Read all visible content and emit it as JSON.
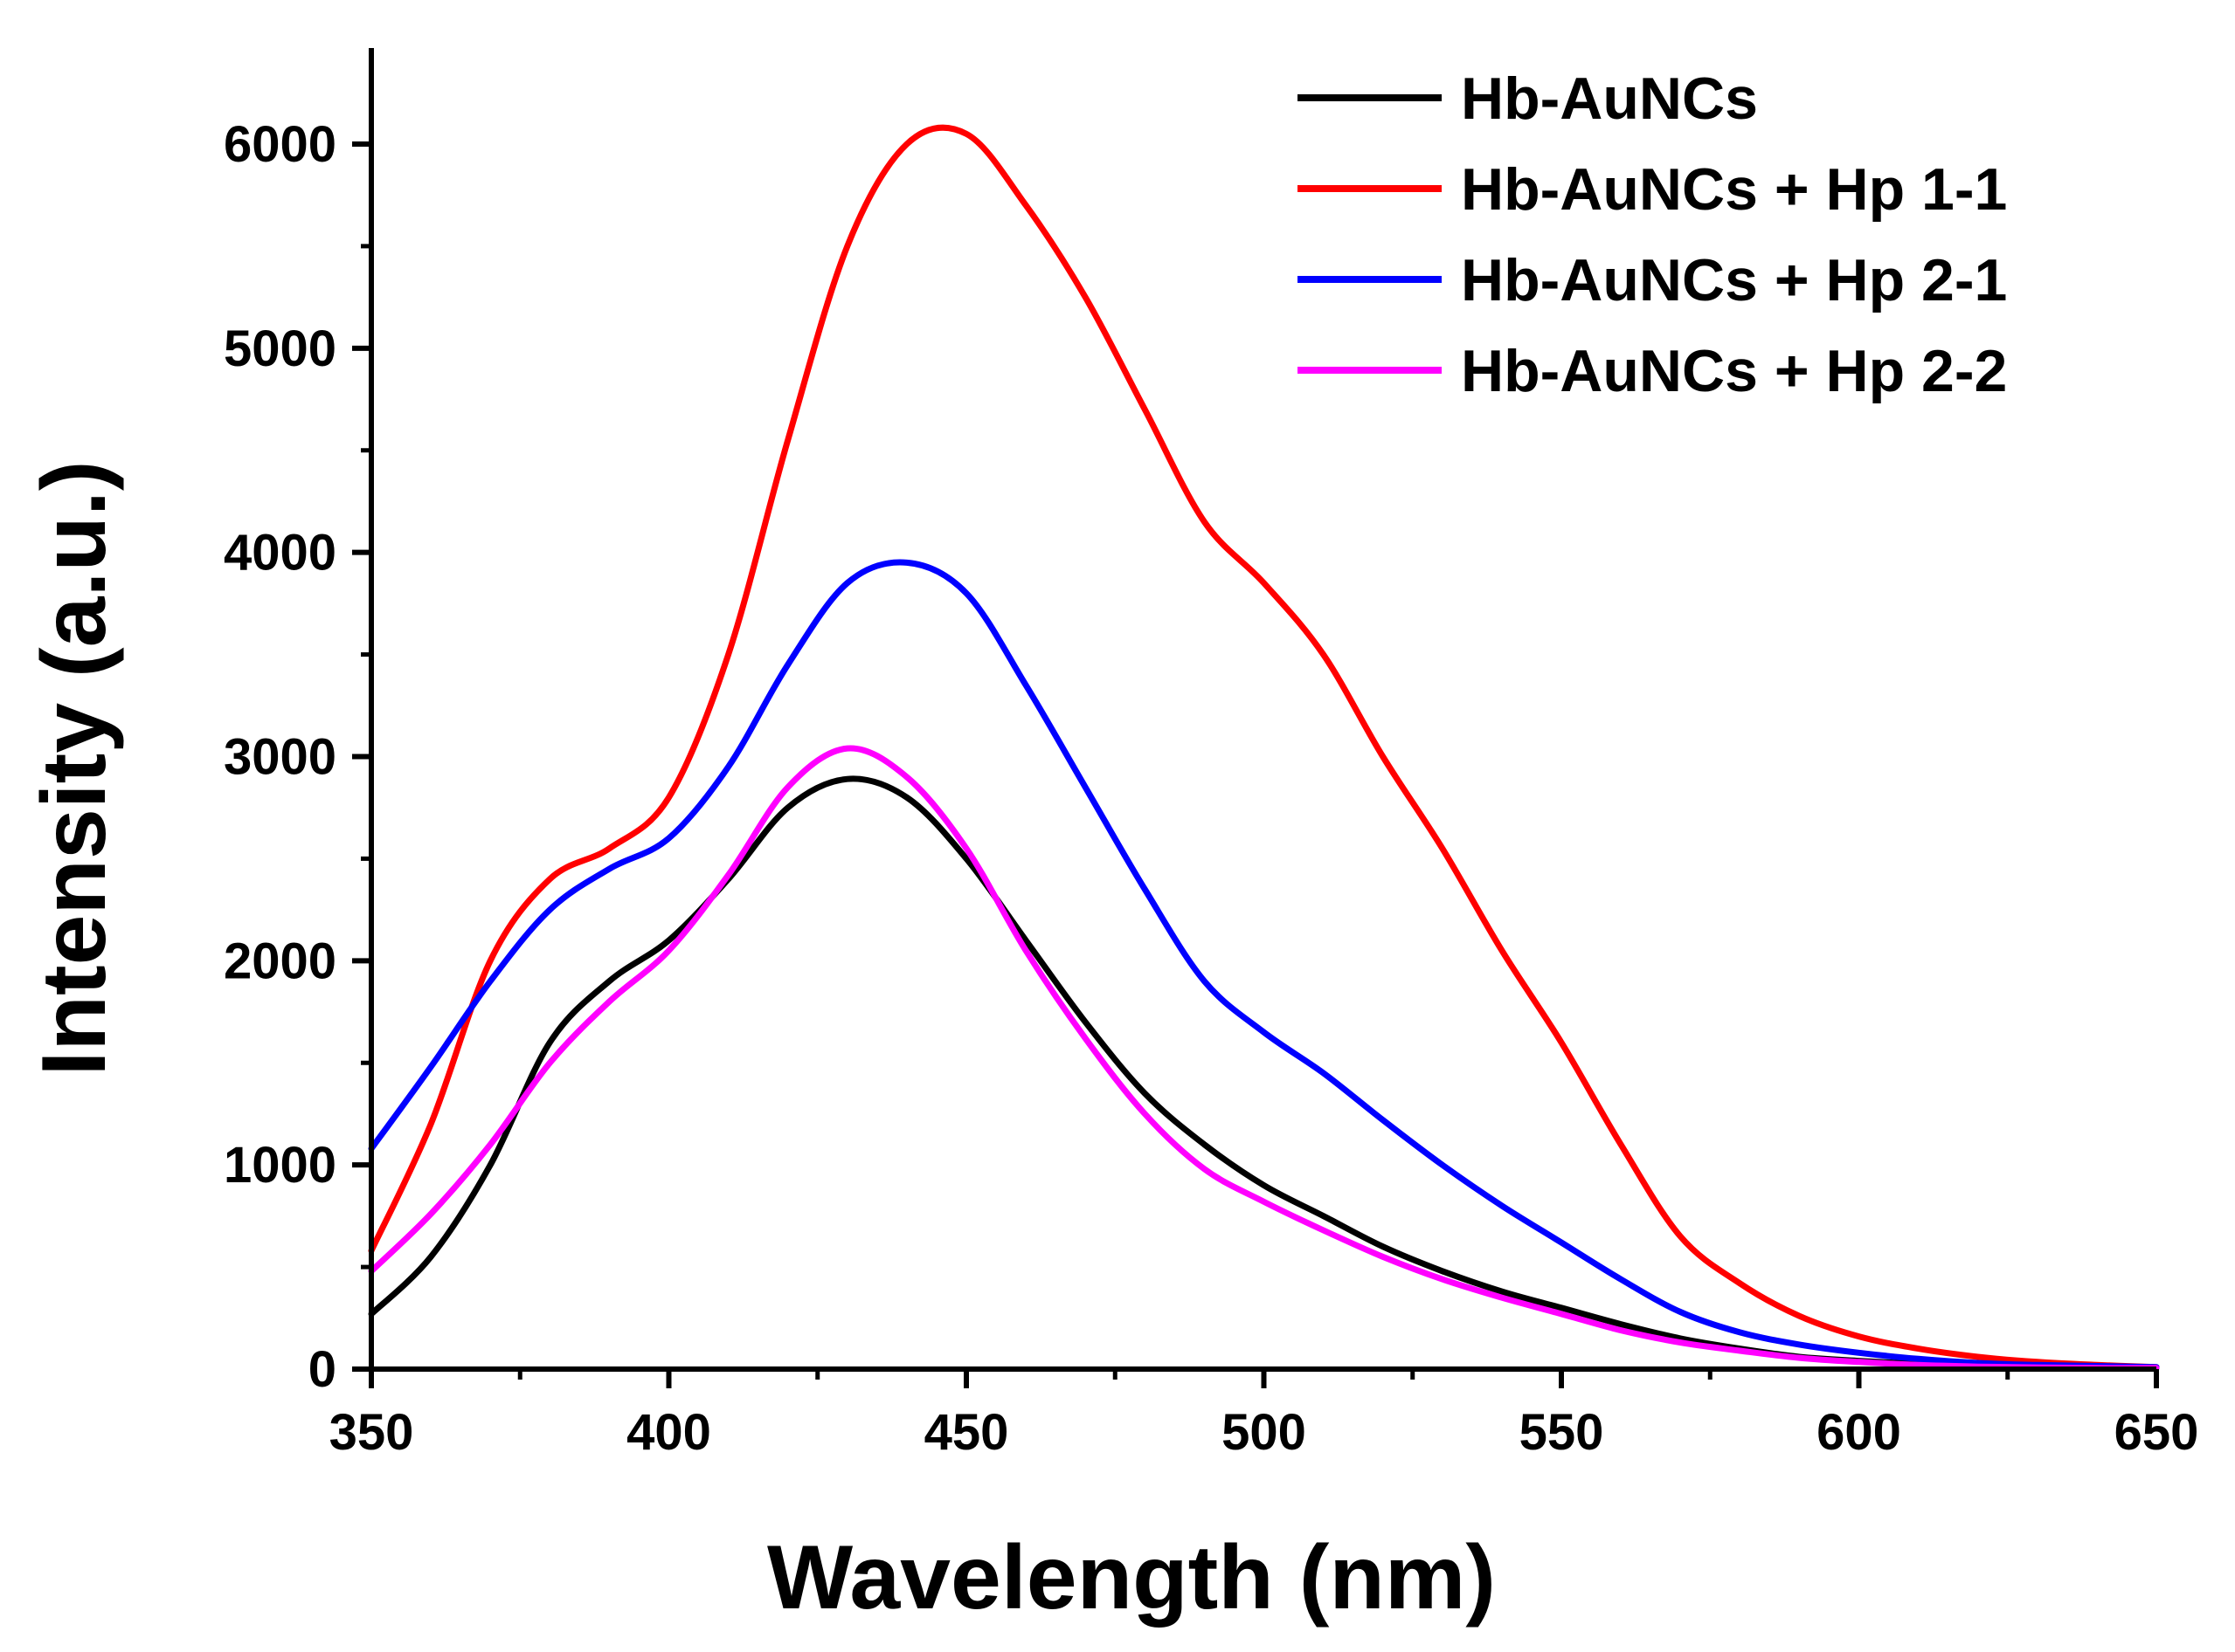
{
  "chart_data": {
    "type": "line",
    "title": "",
    "xlabel": "Wavelength (nm)",
    "ylabel": "Intensity (a.u.)",
    "xlim": [
      350,
      650
    ],
    "ylim": [
      0,
      6500
    ],
    "xticks": [
      "350",
      "400",
      "450",
      "500",
      "550",
      "600",
      "650"
    ],
    "yticks": [
      "0",
      "1000",
      "2000",
      "3000",
      "4000",
      "5000",
      "6000"
    ],
    "grid": false,
    "legend_position": "top-right",
    "x": [
      350,
      360,
      370,
      380,
      390,
      400,
      410,
      420,
      430,
      440,
      450,
      460,
      470,
      480,
      490,
      500,
      510,
      520,
      530,
      540,
      550,
      560,
      570,
      580,
      590,
      600,
      610,
      620,
      630,
      640,
      650
    ],
    "series": [
      {
        "name": "Hb-AuNCs",
        "color": "#000000",
        "values": [
          270,
          550,
          1000,
          1600,
          1900,
          2100,
          2400,
          2750,
          2890,
          2800,
          2500,
          2100,
          1700,
          1350,
          1100,
          900,
          750,
          600,
          480,
          380,
          300,
          220,
          150,
          100,
          60,
          40,
          25,
          15,
          10,
          5,
          5
        ]
      },
      {
        "name": "Hb-AuNCs + Hp 1-1",
        "color": "#ff0000",
        "values": [
          580,
          1200,
          2000,
          2400,
          2550,
          2800,
          3500,
          4550,
          5500,
          6000,
          6050,
          5700,
          5250,
          4700,
          4150,
          3850,
          3500,
          3000,
          2550,
          2050,
          1600,
          1100,
          650,
          420,
          260,
          160,
          100,
          60,
          35,
          20,
          10
        ]
      },
      {
        "name": "Hb-AuNCs + Hp 2-1",
        "color": "#0000ff",
        "values": [
          1080,
          1480,
          1900,
          2250,
          2450,
          2600,
          2950,
          3450,
          3850,
          3950,
          3800,
          3350,
          2850,
          2350,
          1900,
          1650,
          1450,
          1220,
          1000,
          800,
          620,
          440,
          280,
          180,
          120,
          80,
          50,
          30,
          20,
          15,
          10
        ]
      },
      {
        "name": "Hb-AuNCs + Hp 2-2",
        "color": "#ff00ff",
        "values": [
          480,
          760,
          1100,
          1500,
          1800,
          2050,
          2420,
          2850,
          3040,
          2900,
          2550,
          2050,
          1620,
          1250,
          980,
          820,
          680,
          550,
          440,
          350,
          270,
          190,
          130,
          90,
          55,
          35,
          20,
          12,
          8,
          5,
          5
        ]
      }
    ]
  }
}
